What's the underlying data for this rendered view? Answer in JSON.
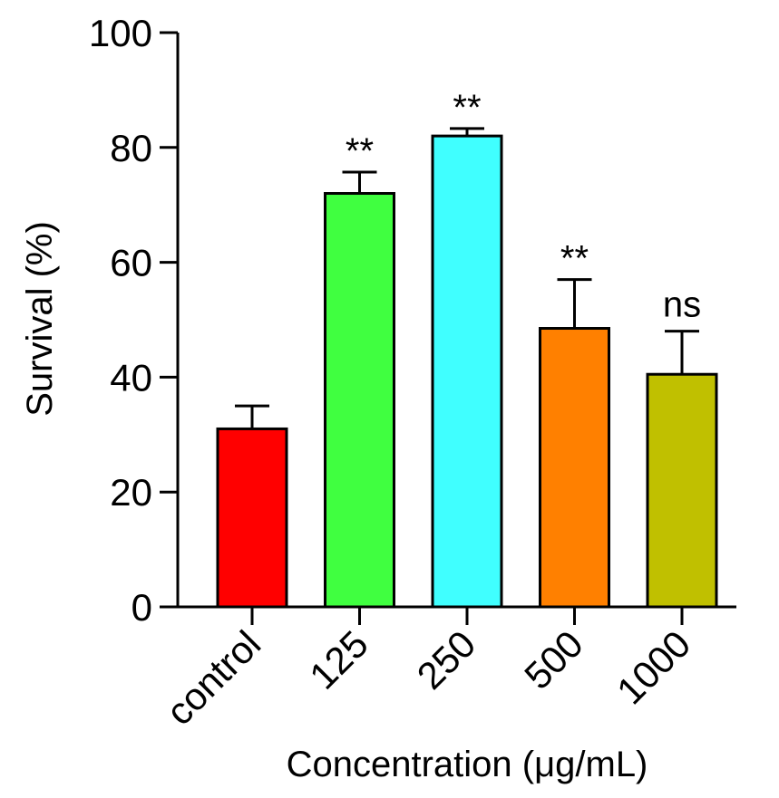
{
  "chart_data": {
    "type": "bar",
    "title": "",
    "xlabel": "Concentration (μg/mL)",
    "ylabel": "Survival (%)",
    "ylim": [
      0,
      100
    ],
    "yticks": [
      0,
      20,
      40,
      60,
      80,
      100
    ],
    "grid": false,
    "categories": [
      "control",
      "125",
      "250",
      "500",
      "1000"
    ],
    "values": [
      31,
      72,
      82,
      48.5,
      40.5
    ],
    "errors": [
      4,
      3.7,
      1.3,
      8.5,
      7.5
    ],
    "significance": [
      "",
      "**",
      "**",
      "**",
      "ns"
    ],
    "colors": [
      "#ff0000",
      "#40ff40",
      "#40ffff",
      "#ff8000",
      "#c0c000"
    ]
  }
}
